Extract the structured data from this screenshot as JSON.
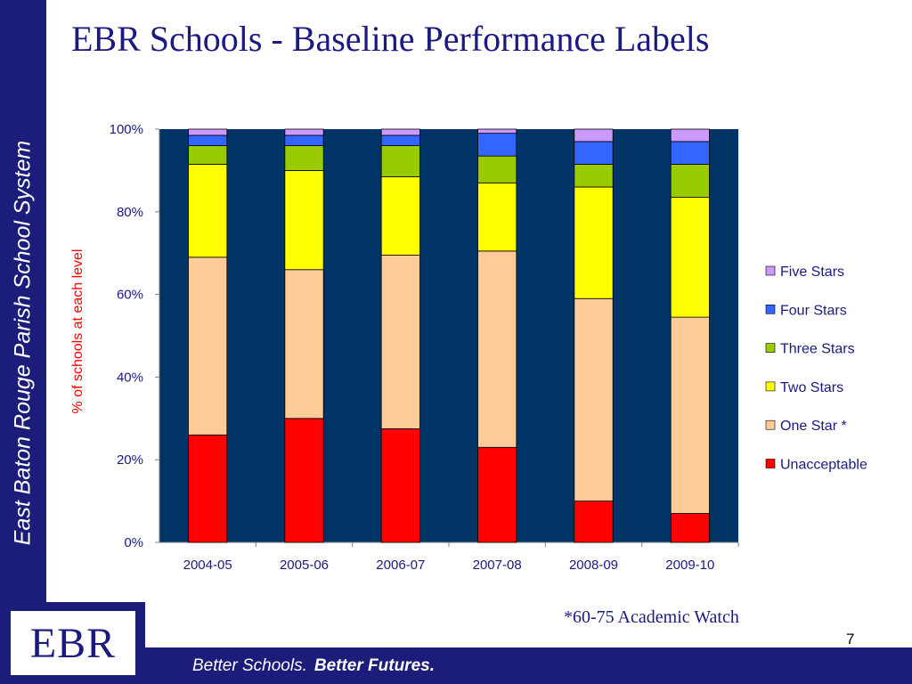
{
  "title": "EBR Schools - Baseline Performance Labels",
  "sidebar_text": "East Baton Rouge Parish School System",
  "footer": {
    "tagline_regular": "Better Schools.",
    "tagline_bold": "Better Futures."
  },
  "logo_text": "EBR",
  "footnote": "*60-75 Academic Watch",
  "slide_number": "7",
  "chart_data": {
    "type": "bar",
    "stacked": true,
    "percent": true,
    "categories": [
      "2004-05",
      "2005-06",
      "2006-07",
      "2007-08",
      "2008-09",
      "2009-10"
    ],
    "ylabel": "% of schools at each level",
    "ylim": [
      0,
      100
    ],
    "yticks": [
      "0%",
      "20%",
      "40%",
      "60%",
      "80%",
      "100%"
    ],
    "plot_background": "#003366",
    "legend_position": "right",
    "series": [
      {
        "name": "Unacceptable",
        "color": "#ff0000",
        "values": [
          26,
          30,
          27.5,
          23,
          10,
          7
        ]
      },
      {
        "name": "One Star *",
        "color": "#ffcc99",
        "values": [
          43,
          36,
          42,
          47.5,
          49,
          47.5
        ]
      },
      {
        "name": "Two Stars",
        "color": "#ffff00",
        "values": [
          22.5,
          24,
          19,
          16.5,
          27,
          29
        ]
      },
      {
        "name": "Three Stars",
        "color": "#99cc00",
        "values": [
          4.5,
          6,
          7.5,
          6.5,
          5.5,
          8
        ]
      },
      {
        "name": "Four Stars",
        "color": "#3366ff",
        "values": [
          2.5,
          2.5,
          2.5,
          5.5,
          5.5,
          5.5
        ]
      },
      {
        "name": "Five Stars",
        "color": "#cc99ff",
        "values": [
          1.5,
          1.5,
          1.5,
          1,
          3,
          3
        ]
      }
    ]
  }
}
